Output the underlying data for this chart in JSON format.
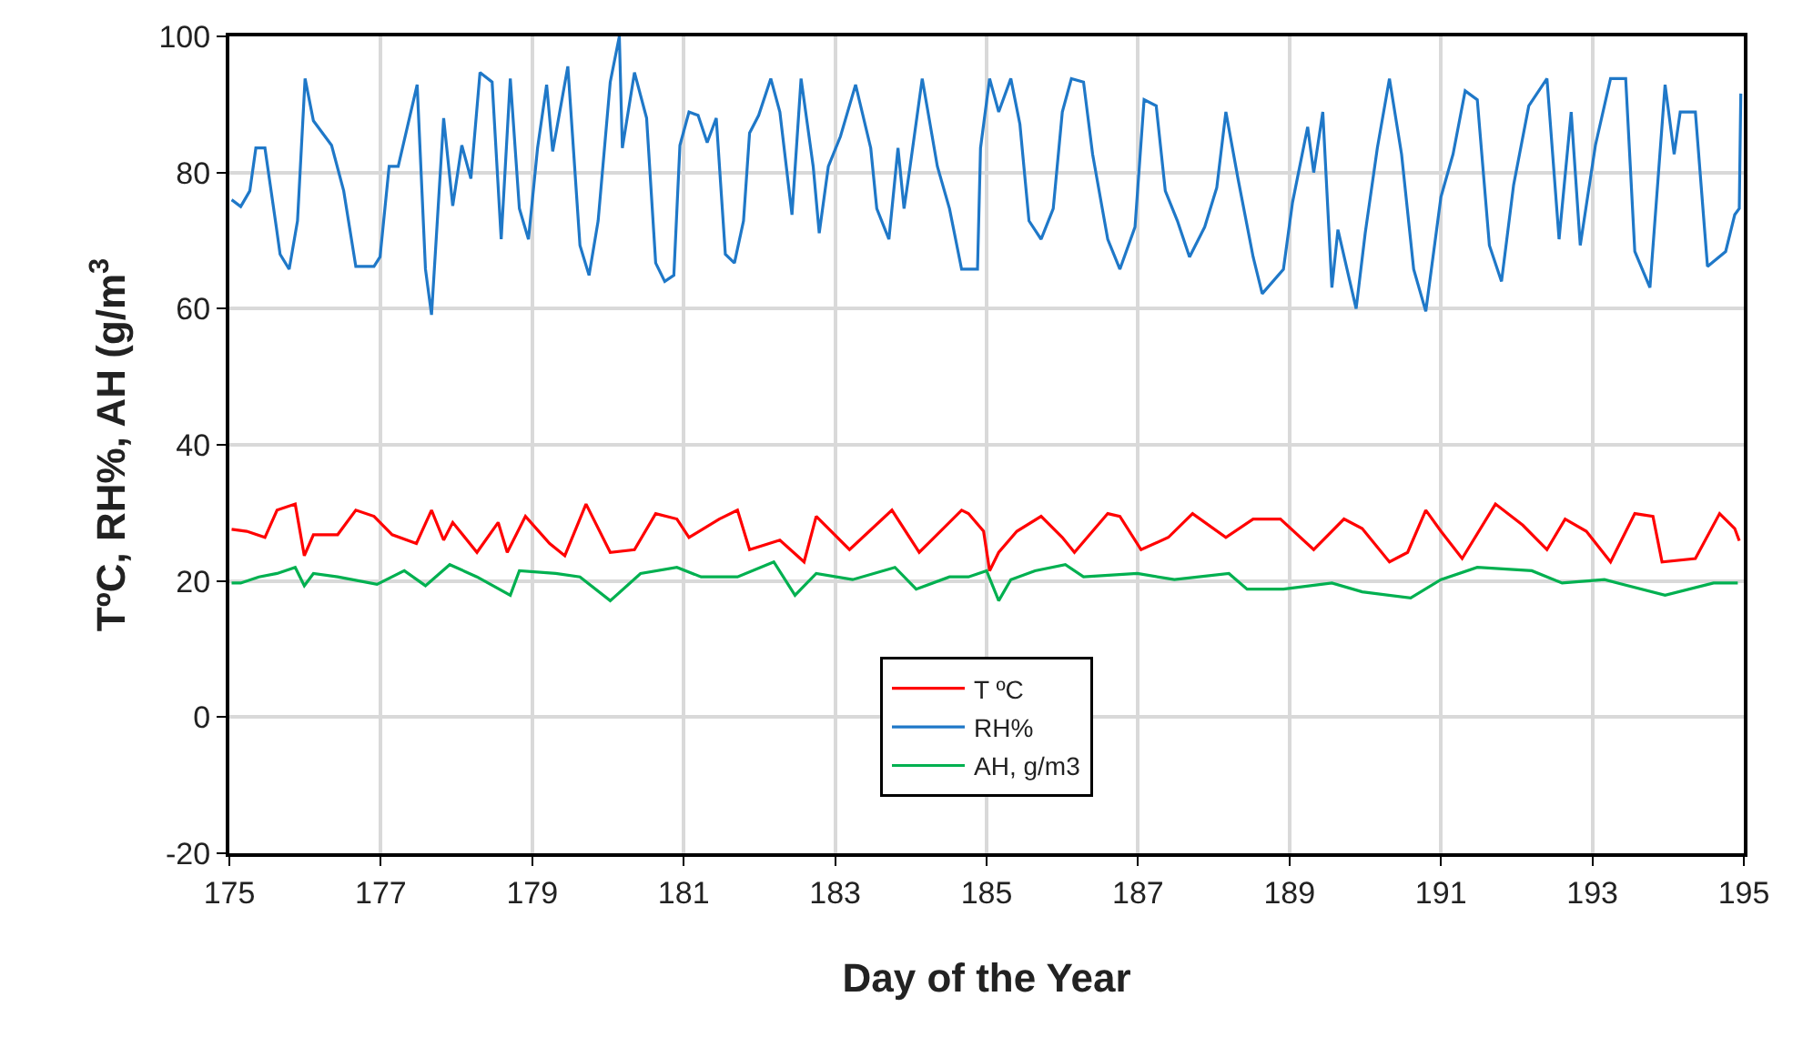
{
  "chart_data": {
    "type": "line",
    "xlabel": "Day of the Year",
    "ylabel": "TºC, RH%, AH (g/m$^{3}$",
    "xlim": [
      175,
      195
    ],
    "xticks": [
      175,
      177,
      179,
      181,
      183,
      185,
      187,
      189,
      191,
      193,
      195
    ],
    "ylim": [
      -20,
      100
    ],
    "yticks": [
      -20,
      0,
      20,
      40,
      60,
      80,
      100
    ],
    "grid": true,
    "legend": "bottom",
    "marker": "none",
    "line_style": "solid",
    "series": [
      {
        "name": "T ºC",
        "color": "#ff0000",
        "x": [
          175.03,
          175.23,
          175.47,
          175.63,
          175.87,
          175.99,
          176.11,
          176.43,
          176.67,
          176.91,
          177.15,
          177.47,
          177.67,
          177.83,
          177.95,
          178.27,
          178.55,
          178.67,
          178.91,
          179.23,
          179.43,
          179.71,
          180.03,
          180.35,
          180.63,
          180.91,
          181.07,
          181.47,
          181.71,
          181.87,
          182.27,
          182.59,
          182.75,
          183.19,
          183.75,
          184.11,
          184.67,
          184.76,
          184.96,
          185.04,
          185.16,
          185.4,
          185.72,
          186.0,
          186.16,
          186.6,
          186.76,
          187.04,
          187.4,
          187.72,
          188.16,
          188.52,
          188.88,
          189.32,
          189.72,
          189.96,
          190.32,
          190.56,
          190.8,
          191.0,
          191.28,
          191.72,
          192.08,
          192.4,
          192.64,
          192.92,
          193.24,
          193.56,
          193.8,
          193.92,
          194.36,
          194.68,
          194.88,
          194.94
        ],
        "values": [
          27.6,
          27.3,
          26.4,
          30.4,
          31.3,
          23.7,
          26.8,
          26.8,
          30.4,
          29.5,
          26.8,
          25.5,
          30.4,
          26,
          28.6,
          24.2,
          28.6,
          24.2,
          29.5,
          25.5,
          23.7,
          31.3,
          24.2,
          24.6,
          29.9,
          29.1,
          26.4,
          29.1,
          30.4,
          24.6,
          26,
          22.8,
          29.5,
          24.6,
          30.4,
          24.2,
          30.4,
          29.9,
          27.3,
          21.5,
          24.2,
          27.3,
          29.5,
          26.4,
          24.2,
          29.9,
          29.5,
          24.6,
          26.4,
          29.9,
          26.4,
          29.1,
          29.1,
          24.6,
          29.1,
          27.7,
          22.8,
          24.2,
          30.4,
          27.3,
          23.3,
          31.3,
          28.2,
          24.6,
          29.1,
          27.3,
          22.8,
          29.9,
          29.5,
          22.8,
          23.3,
          29.9,
          27.7,
          25.9
        ]
      },
      {
        "name": "RH%",
        "color": "#1f78c8",
        "x": [
          175.03,
          175.15,
          175.27,
          175.35,
          175.47,
          175.62,
          175.67,
          175.79,
          175.9,
          176.0,
          176.11,
          176.35,
          176.51,
          176.67,
          176.91,
          176.99,
          177.11,
          177.23,
          177.48,
          177.59,
          177.67,
          177.83,
          177.95,
          178.07,
          178.19,
          178.31,
          178.47,
          178.59,
          178.71,
          178.83,
          178.95,
          179.07,
          179.19,
          179.27,
          179.47,
          179.63,
          179.75,
          179.87,
          180.03,
          180.15,
          180.19,
          180.35,
          180.51,
          180.63,
          180.75,
          180.87,
          180.95,
          181.07,
          181.19,
          181.31,
          181.43,
          181.55,
          181.67,
          181.79,
          181.87,
          181.99,
          182.15,
          182.27,
          182.43,
          182.55,
          182.71,
          182.79,
          182.91,
          183.07,
          183.27,
          183.47,
          183.55,
          183.71,
          183.83,
          183.91,
          183.99,
          184.15,
          184.35,
          184.51,
          184.67,
          184.76,
          184.88,
          184.92,
          185.04,
          185.16,
          185.32,
          185.44,
          185.56,
          185.72,
          185.88,
          186.0,
          186.12,
          186.28,
          186.4,
          186.6,
          186.76,
          186.96,
          187.08,
          187.24,
          187.36,
          187.52,
          187.68,
          187.88,
          188.04,
          188.16,
          188.32,
          188.52,
          188.64,
          188.92,
          189.04,
          189.24,
          189.32,
          189.44,
          189.56,
          189.64,
          189.88,
          190.0,
          190.16,
          190.32,
          190.48,
          190.64,
          190.8,
          191.0,
          191.16,
          191.32,
          191.48,
          191.64,
          191.8,
          191.96,
          192.16,
          192.4,
          192.56,
          192.72,
          192.84,
          193.04,
          193.24,
          193.44,
          193.56,
          193.76,
          193.96,
          194.08,
          194.16,
          194.36,
          194.52,
          194.76,
          194.88,
          194.94,
          194.96
        ],
        "values": [
          76,
          75,
          77.3,
          83.6,
          83.6,
          72,
          68,
          65.8,
          72.9,
          93.8,
          87.6,
          84,
          77.3,
          66.2,
          66.2,
          67.6,
          80.9,
          80.9,
          92.9,
          65.8,
          59.1,
          88,
          75.1,
          84,
          79.1,
          94.7,
          93.3,
          70.2,
          93.8,
          74.7,
          70.2,
          83.6,
          92.9,
          83.1,
          95.6,
          69.3,
          64.9,
          72.9,
          93.3,
          100,
          83.6,
          94.7,
          88,
          66.7,
          64,
          64.9,
          84,
          88.9,
          88.4,
          84.4,
          88,
          68,
          66.7,
          72.9,
          85.8,
          88.4,
          93.8,
          88.9,
          73.8,
          93.8,
          80.9,
          71.1,
          80.9,
          85.3,
          92.9,
          83.6,
          74.7,
          70.2,
          83.6,
          74.7,
          80.9,
          93.8,
          80.9,
          74.7,
          65.8,
          65.8,
          65.8,
          83.6,
          93.8,
          88.9,
          93.8,
          87.1,
          72.9,
          70.2,
          74.7,
          88.9,
          93.8,
          93.3,
          82.7,
          70.2,
          65.8,
          72,
          90.7,
          89.8,
          77.3,
          72.9,
          67.6,
          72,
          77.8,
          88.9,
          79.1,
          67.6,
          62.2,
          65.8,
          75.6,
          86.7,
          80,
          88.9,
          63.1,
          71.6,
          60,
          71.1,
          83.6,
          93.8,
          82.7,
          65.8,
          59.6,
          76.4,
          82.7,
          92,
          90.7,
          69.3,
          64,
          78.2,
          89.8,
          93.8,
          70.2,
          88.9,
          69.3,
          84,
          93.8,
          93.8,
          68.4,
          63.1,
          92.9,
          82.7,
          88.9,
          88.9,
          66.2,
          68.4,
          73.8,
          74.7,
          91.6
        ]
      },
      {
        "name": "AH, g/m3",
        "color": "#00b050",
        "x": [
          175.03,
          175.15,
          175.39,
          175.63,
          175.87,
          175.99,
          176.11,
          176.43,
          176.95,
          177.31,
          177.59,
          177.91,
          178.27,
          178.71,
          178.83,
          179.31,
          179.63,
          180.03,
          180.43,
          180.91,
          181.23,
          181.71,
          182.19,
          182.47,
          182.75,
          183.23,
          183.79,
          184.07,
          184.51,
          184.76,
          185.0,
          185.16,
          185.32,
          185.64,
          186.04,
          186.28,
          186.99,
          187.48,
          188.2,
          188.44,
          188.92,
          189.56,
          189.96,
          190.6,
          191.0,
          191.48,
          192.2,
          192.6,
          193.16,
          193.96,
          194.6,
          194.92
        ],
        "values": [
          19.7,
          19.7,
          20.6,
          21.1,
          22,
          19.3,
          21.1,
          20.6,
          19.5,
          21.5,
          19.3,
          22.4,
          20.6,
          17.9,
          21.5,
          21.1,
          20.6,
          17.1,
          21.1,
          22,
          20.6,
          20.6,
          22.8,
          17.9,
          21.1,
          20.2,
          22,
          18.8,
          20.6,
          20.6,
          21.5,
          17.1,
          20.2,
          21.5,
          22.4,
          20.6,
          21.1,
          20.2,
          21.1,
          18.8,
          18.8,
          19.7,
          18.4,
          17.5,
          20.2,
          22,
          21.5,
          19.7,
          20.2,
          17.9,
          19.7,
          19.7
        ]
      }
    ]
  }
}
